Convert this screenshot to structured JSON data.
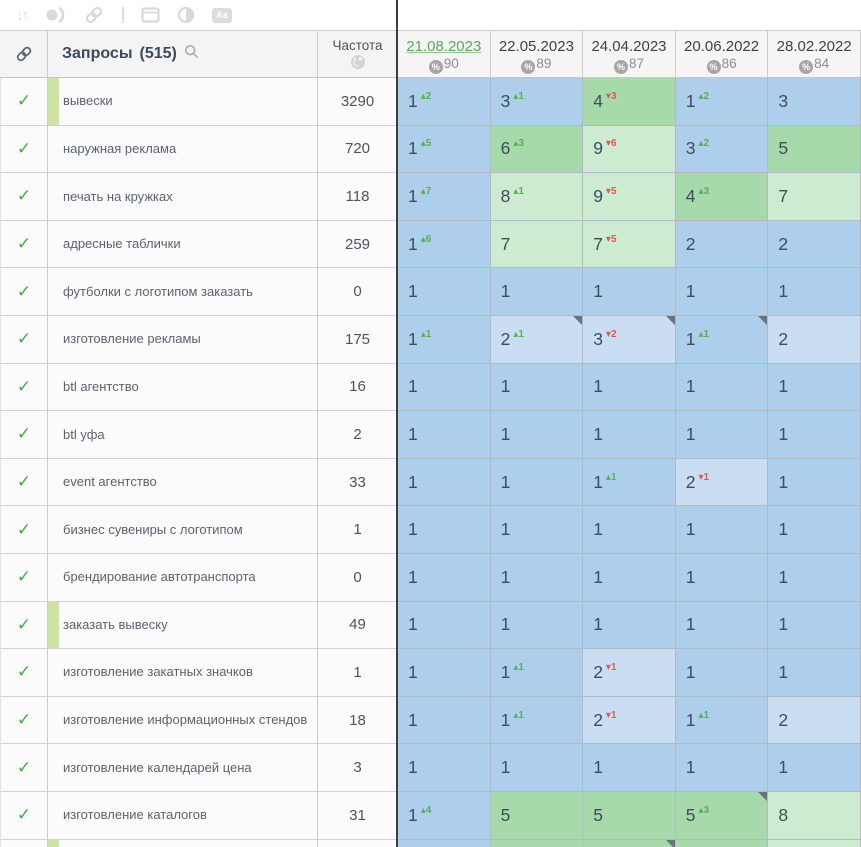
{
  "toolbar": {
    "sort_glyph": "↓↑",
    "font_case_label": "Aa"
  },
  "header": {
    "queries_label": "Запросы",
    "queries_count": "(515)",
    "frequency_label": "Частота",
    "dates": [
      {
        "label": "21.08.2023",
        "percent": "90",
        "active": true
      },
      {
        "label": "22.05.2023",
        "percent": "89",
        "active": false
      },
      {
        "label": "24.04.2023",
        "percent": "87",
        "active": false
      },
      {
        "label": "20.06.2022",
        "percent": "86",
        "active": false
      },
      {
        "label": "28.02.2022",
        "percent": "84",
        "active": false
      }
    ]
  },
  "rows": [
    {
      "keyword": "вывески",
      "frequency": "3290",
      "bar": true,
      "cells": [
        {
          "v": "1",
          "d": "2",
          "dir": "up",
          "bg": "blue"
        },
        {
          "v": "3",
          "d": "1",
          "dir": "up",
          "bg": "blue"
        },
        {
          "v": "4",
          "d": "3",
          "dir": "down",
          "bg": "green"
        },
        {
          "v": "1",
          "d": "2",
          "dir": "up",
          "bg": "blue"
        },
        {
          "v": "3",
          "bg": "blue"
        }
      ]
    },
    {
      "keyword": "наружная реклама",
      "frequency": "720",
      "bar": false,
      "cells": [
        {
          "v": "1",
          "d": "5",
          "dir": "up",
          "bg": "blue"
        },
        {
          "v": "6",
          "d": "3",
          "dir": "up",
          "bg": "green"
        },
        {
          "v": "9",
          "d": "6",
          "dir": "down",
          "bg": "green-light"
        },
        {
          "v": "3",
          "d": "2",
          "dir": "up",
          "bg": "blue"
        },
        {
          "v": "5",
          "bg": "green"
        }
      ]
    },
    {
      "keyword": "печать на кружках",
      "frequency": "118",
      "bar": false,
      "cells": [
        {
          "v": "1",
          "d": "7",
          "dir": "up",
          "bg": "blue"
        },
        {
          "v": "8",
          "d": "1",
          "dir": "up",
          "bg": "green-light"
        },
        {
          "v": "9",
          "d": "5",
          "dir": "down",
          "bg": "green-light"
        },
        {
          "v": "4",
          "d": "3",
          "dir": "up",
          "bg": "green"
        },
        {
          "v": "7",
          "bg": "green-light"
        }
      ]
    },
    {
      "keyword": "адресные таблички",
      "frequency": "259",
      "bar": false,
      "cells": [
        {
          "v": "1",
          "d": "6",
          "dir": "up",
          "bg": "blue"
        },
        {
          "v": "7",
          "bg": "green-light"
        },
        {
          "v": "7",
          "d": "5",
          "dir": "down",
          "bg": "green-light"
        },
        {
          "v": "2",
          "bg": "blue"
        },
        {
          "v": "2",
          "bg": "blue"
        }
      ]
    },
    {
      "keyword": "футболки с логотипом заказать",
      "frequency": "0",
      "bar": false,
      "cells": [
        {
          "v": "1",
          "bg": "blue"
        },
        {
          "v": "1",
          "bg": "blue"
        },
        {
          "v": "1",
          "bg": "blue"
        },
        {
          "v": "1",
          "bg": "blue"
        },
        {
          "v": "1",
          "bg": "blue"
        }
      ]
    },
    {
      "keyword": "изготовление рекламы",
      "frequency": "175",
      "bar": false,
      "cells": [
        {
          "v": "1",
          "d": "1",
          "dir": "up",
          "bg": "blue"
        },
        {
          "v": "2",
          "d": "1",
          "dir": "up",
          "bg": "blue-light",
          "corner": true
        },
        {
          "v": "3",
          "d": "2",
          "dir": "down",
          "bg": "blue-light",
          "corner": true
        },
        {
          "v": "1",
          "d": "1",
          "dir": "up",
          "bg": "blue",
          "corner": true
        },
        {
          "v": "2",
          "bg": "blue-light"
        }
      ]
    },
    {
      "keyword": "btl агентство",
      "frequency": "16",
      "bar": false,
      "cells": [
        {
          "v": "1",
          "bg": "blue"
        },
        {
          "v": "1",
          "bg": "blue"
        },
        {
          "v": "1",
          "bg": "blue"
        },
        {
          "v": "1",
          "bg": "blue"
        },
        {
          "v": "1",
          "bg": "blue"
        }
      ]
    },
    {
      "keyword": "btl уфа",
      "frequency": "2",
      "bar": false,
      "cells": [
        {
          "v": "1",
          "bg": "blue"
        },
        {
          "v": "1",
          "bg": "blue"
        },
        {
          "v": "1",
          "bg": "blue"
        },
        {
          "v": "1",
          "bg": "blue"
        },
        {
          "v": "1",
          "bg": "blue"
        }
      ]
    },
    {
      "keyword": "event агентство",
      "frequency": "33",
      "bar": false,
      "cells": [
        {
          "v": "1",
          "bg": "blue"
        },
        {
          "v": "1",
          "bg": "blue"
        },
        {
          "v": "1",
          "d": "1",
          "dir": "up",
          "bg": "blue"
        },
        {
          "v": "2",
          "d": "1",
          "dir": "down",
          "bg": "blue-light"
        },
        {
          "v": "1",
          "bg": "blue"
        }
      ]
    },
    {
      "keyword": "бизнес сувениры с логотипом",
      "frequency": "1",
      "bar": false,
      "cells": [
        {
          "v": "1",
          "bg": "blue"
        },
        {
          "v": "1",
          "bg": "blue"
        },
        {
          "v": "1",
          "bg": "blue"
        },
        {
          "v": "1",
          "bg": "blue"
        },
        {
          "v": "1",
          "bg": "blue"
        }
      ]
    },
    {
      "keyword": "брендирование автотранспорта",
      "frequency": "0",
      "bar": false,
      "cells": [
        {
          "v": "1",
          "bg": "blue"
        },
        {
          "v": "1",
          "bg": "blue"
        },
        {
          "v": "1",
          "bg": "blue"
        },
        {
          "v": "1",
          "bg": "blue"
        },
        {
          "v": "1",
          "bg": "blue"
        }
      ]
    },
    {
      "keyword": "заказать вывеску",
      "frequency": "49",
      "bar": true,
      "cells": [
        {
          "v": "1",
          "bg": "blue"
        },
        {
          "v": "1",
          "bg": "blue"
        },
        {
          "v": "1",
          "bg": "blue"
        },
        {
          "v": "1",
          "bg": "blue"
        },
        {
          "v": "1",
          "bg": "blue"
        }
      ]
    },
    {
      "keyword": "изготовление закатных значков",
      "frequency": "1",
      "bar": false,
      "cells": [
        {
          "v": "1",
          "bg": "blue"
        },
        {
          "v": "1",
          "d": "1",
          "dir": "up",
          "bg": "blue"
        },
        {
          "v": "2",
          "d": "1",
          "dir": "down",
          "bg": "blue-light"
        },
        {
          "v": "1",
          "bg": "blue"
        },
        {
          "v": "1",
          "bg": "blue"
        }
      ]
    },
    {
      "keyword": "изготовление информационных стендов",
      "frequency": "18",
      "bar": false,
      "cells": [
        {
          "v": "1",
          "bg": "blue"
        },
        {
          "v": "1",
          "d": "1",
          "dir": "up",
          "bg": "blue"
        },
        {
          "v": "2",
          "d": "1",
          "dir": "down",
          "bg": "blue-light"
        },
        {
          "v": "1",
          "d": "1",
          "dir": "up",
          "bg": "blue"
        },
        {
          "v": "2",
          "bg": "blue-light"
        }
      ]
    },
    {
      "keyword": "изготовление календарей цена",
      "frequency": "3",
      "bar": false,
      "cells": [
        {
          "v": "1",
          "bg": "blue"
        },
        {
          "v": "1",
          "bg": "blue"
        },
        {
          "v": "1",
          "bg": "blue"
        },
        {
          "v": "1",
          "bg": "blue"
        },
        {
          "v": "1",
          "bg": "blue"
        }
      ]
    },
    {
      "keyword": "изготовление каталогов",
      "frequency": "31",
      "bar": false,
      "cells": [
        {
          "v": "1",
          "d": "4",
          "dir": "up",
          "bg": "blue"
        },
        {
          "v": "5",
          "bg": "green"
        },
        {
          "v": "5",
          "bg": "green"
        },
        {
          "v": "5",
          "d": "3",
          "dir": "up",
          "bg": "green",
          "corner": true
        },
        {
          "v": "8",
          "bg": "green-light"
        }
      ]
    },
    {
      "keyword": "",
      "frequency": "",
      "bar": true,
      "cells": [
        {
          "v": "",
          "bg": "blue"
        },
        {
          "v": "",
          "bg": "green"
        },
        {
          "v": "",
          "bg": "green",
          "corner": true
        },
        {
          "v": "",
          "bg": "green"
        },
        {
          "v": "",
          "bg": "green-light"
        }
      ]
    }
  ],
  "colors": {
    "active_date_green": "#57a857",
    "cell_blue": "#aecfeb",
    "cell_blue_light": "#c9def2",
    "cell_green": "#a7daab",
    "cell_green_light": "#cdebd1",
    "delta_up": "#55b155",
    "delta_down": "#e2574a",
    "keyword_bar_green": "#cfe4a1",
    "checkmark_green": "#3fae46",
    "column_separator": "#3e3e3e"
  }
}
